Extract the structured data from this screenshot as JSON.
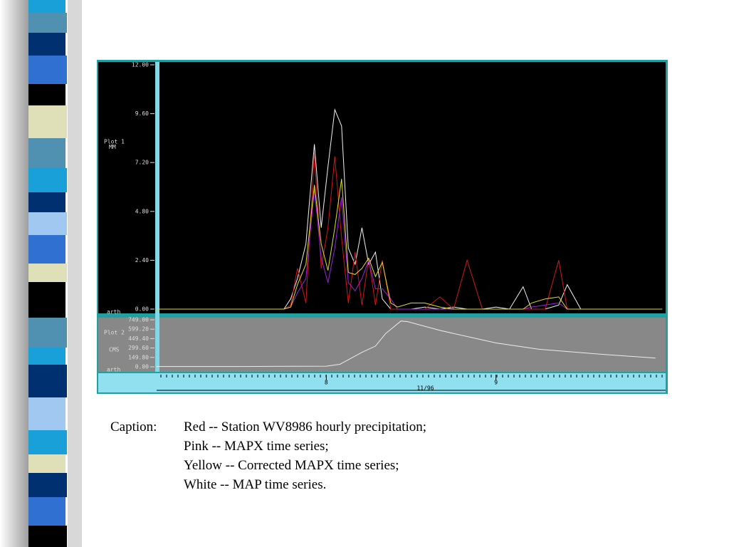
{
  "chart_data": [
    {
      "type": "line",
      "title": "Plot 1",
      "ylabel": "MM",
      "annotation": "arth",
      "x": [
        7.0,
        7.33,
        7.75,
        7.79,
        7.83,
        7.88,
        7.93,
        7.97,
        8.01,
        8.05,
        8.09,
        8.13,
        8.17,
        8.21,
        8.25,
        8.29,
        8.33,
        8.38,
        8.42,
        8.5,
        8.58,
        8.67,
        8.75,
        8.83,
        8.92,
        9.0,
        9.08,
        9.16,
        9.21,
        9.29,
        9.37,
        9.42,
        9.5,
        9.67,
        9.83,
        9.98
      ],
      "xlim": [
        7,
        10
      ],
      "ylim": [
        0,
        12
      ],
      "yticks": [
        {
          "value": 0,
          "label": "0.00"
        },
        {
          "value": 2.4,
          "label": "2.40"
        },
        {
          "value": 4.8,
          "label": "4.80"
        },
        {
          "value": 7.2,
          "label": "7.20"
        },
        {
          "value": 9.6,
          "label": "9.60"
        },
        {
          "value": 12,
          "label": "12.00"
        }
      ],
      "series": [
        {
          "color": "#f2f2f2",
          "values": [
            0,
            0,
            0,
            0.5,
            1.5,
            3.2,
            8.1,
            4,
            7,
            9.8,
            9.0,
            3,
            2.2,
            4.0,
            2.2,
            2.8,
            0.5,
            0,
            0,
            0,
            0.1,
            0,
            0.1,
            0,
            0,
            0.1,
            0,
            1.1,
            0,
            0,
            0.2,
            1.2,
            0,
            0,
            0,
            0
          ]
        },
        {
          "color": "#d01818",
          "values": [
            0,
            0,
            0,
            0.2,
            2.0,
            0.3,
            7.7,
            2,
            4,
            7.5,
            3.5,
            0.3,
            2.8,
            0.2,
            2.5,
            0.2,
            2.4,
            0,
            0,
            0,
            0,
            0.6,
            0,
            2.4,
            0,
            0,
            0,
            0,
            0,
            0,
            2.4,
            0,
            0,
            0,
            0,
            0
          ]
        },
        {
          "color": "#a020e0",
          "values": [
            0,
            0,
            0,
            0.1,
            0.8,
            1.5,
            5.9,
            2.5,
            1.3,
            3.0,
            5.5,
            1.3,
            0.9,
            1.5,
            2.4,
            1.0,
            1.0,
            0.5,
            0,
            0,
            0,
            0,
            0,
            0,
            0,
            0,
            0,
            0,
            0.1,
            0.2,
            0.3,
            0,
            0,
            0,
            0,
            0
          ]
        },
        {
          "color": "#e0e020",
          "values": [
            0,
            0,
            0,
            0.1,
            1.2,
            2.2,
            6.1,
            3.2,
            1.9,
            4.0,
            6.4,
            1.8,
            1.7,
            2.0,
            2.5,
            1.6,
            2.3,
            0.3,
            0.1,
            0.3,
            0.3,
            0.1,
            0,
            0,
            0,
            0,
            0,
            0,
            0.3,
            0.5,
            0.6,
            0,
            0,
            0,
            0,
            0
          ]
        }
      ]
    },
    {
      "type": "line",
      "title": "Plot 2",
      "ylabel": "CMS",
      "annotation": "arth",
      "xlabel": "11/96",
      "x": [
        7.0,
        7.5,
        8.0,
        8.08,
        8.21,
        8.29,
        8.35,
        8.44,
        8.48,
        8.67,
        9.0,
        9.25,
        9.62,
        9.94
      ],
      "xlim": [
        7,
        10
      ],
      "xticks": [
        8,
        9
      ],
      "ylim": [
        0,
        749
      ],
      "yticks": [
        {
          "value": 0,
          "label": "0.00"
        },
        {
          "value": 149.8,
          "label": "149.80"
        },
        {
          "value": 299.6,
          "label": "299.60"
        },
        {
          "value": 449.4,
          "label": "449.40"
        },
        {
          "value": 599.2,
          "label": "599.20"
        },
        {
          "value": 749,
          "label": "749.00"
        }
      ],
      "series": [
        {
          "color": "#ececec",
          "values": [
            5,
            5,
            10,
            40,
            230,
            330,
            530,
            730,
            720,
            580,
            380,
            280,
            200,
            140
          ]
        }
      ]
    }
  ],
  "caption": {
    "label": "Caption:",
    "lines": [
      "Red  -- Station WV8986 hourly precipitation;",
      "Pink  -- MAPX time series;",
      "Yellow  -- Corrected MAPX time series;",
      "White -- MAP time series."
    ]
  }
}
